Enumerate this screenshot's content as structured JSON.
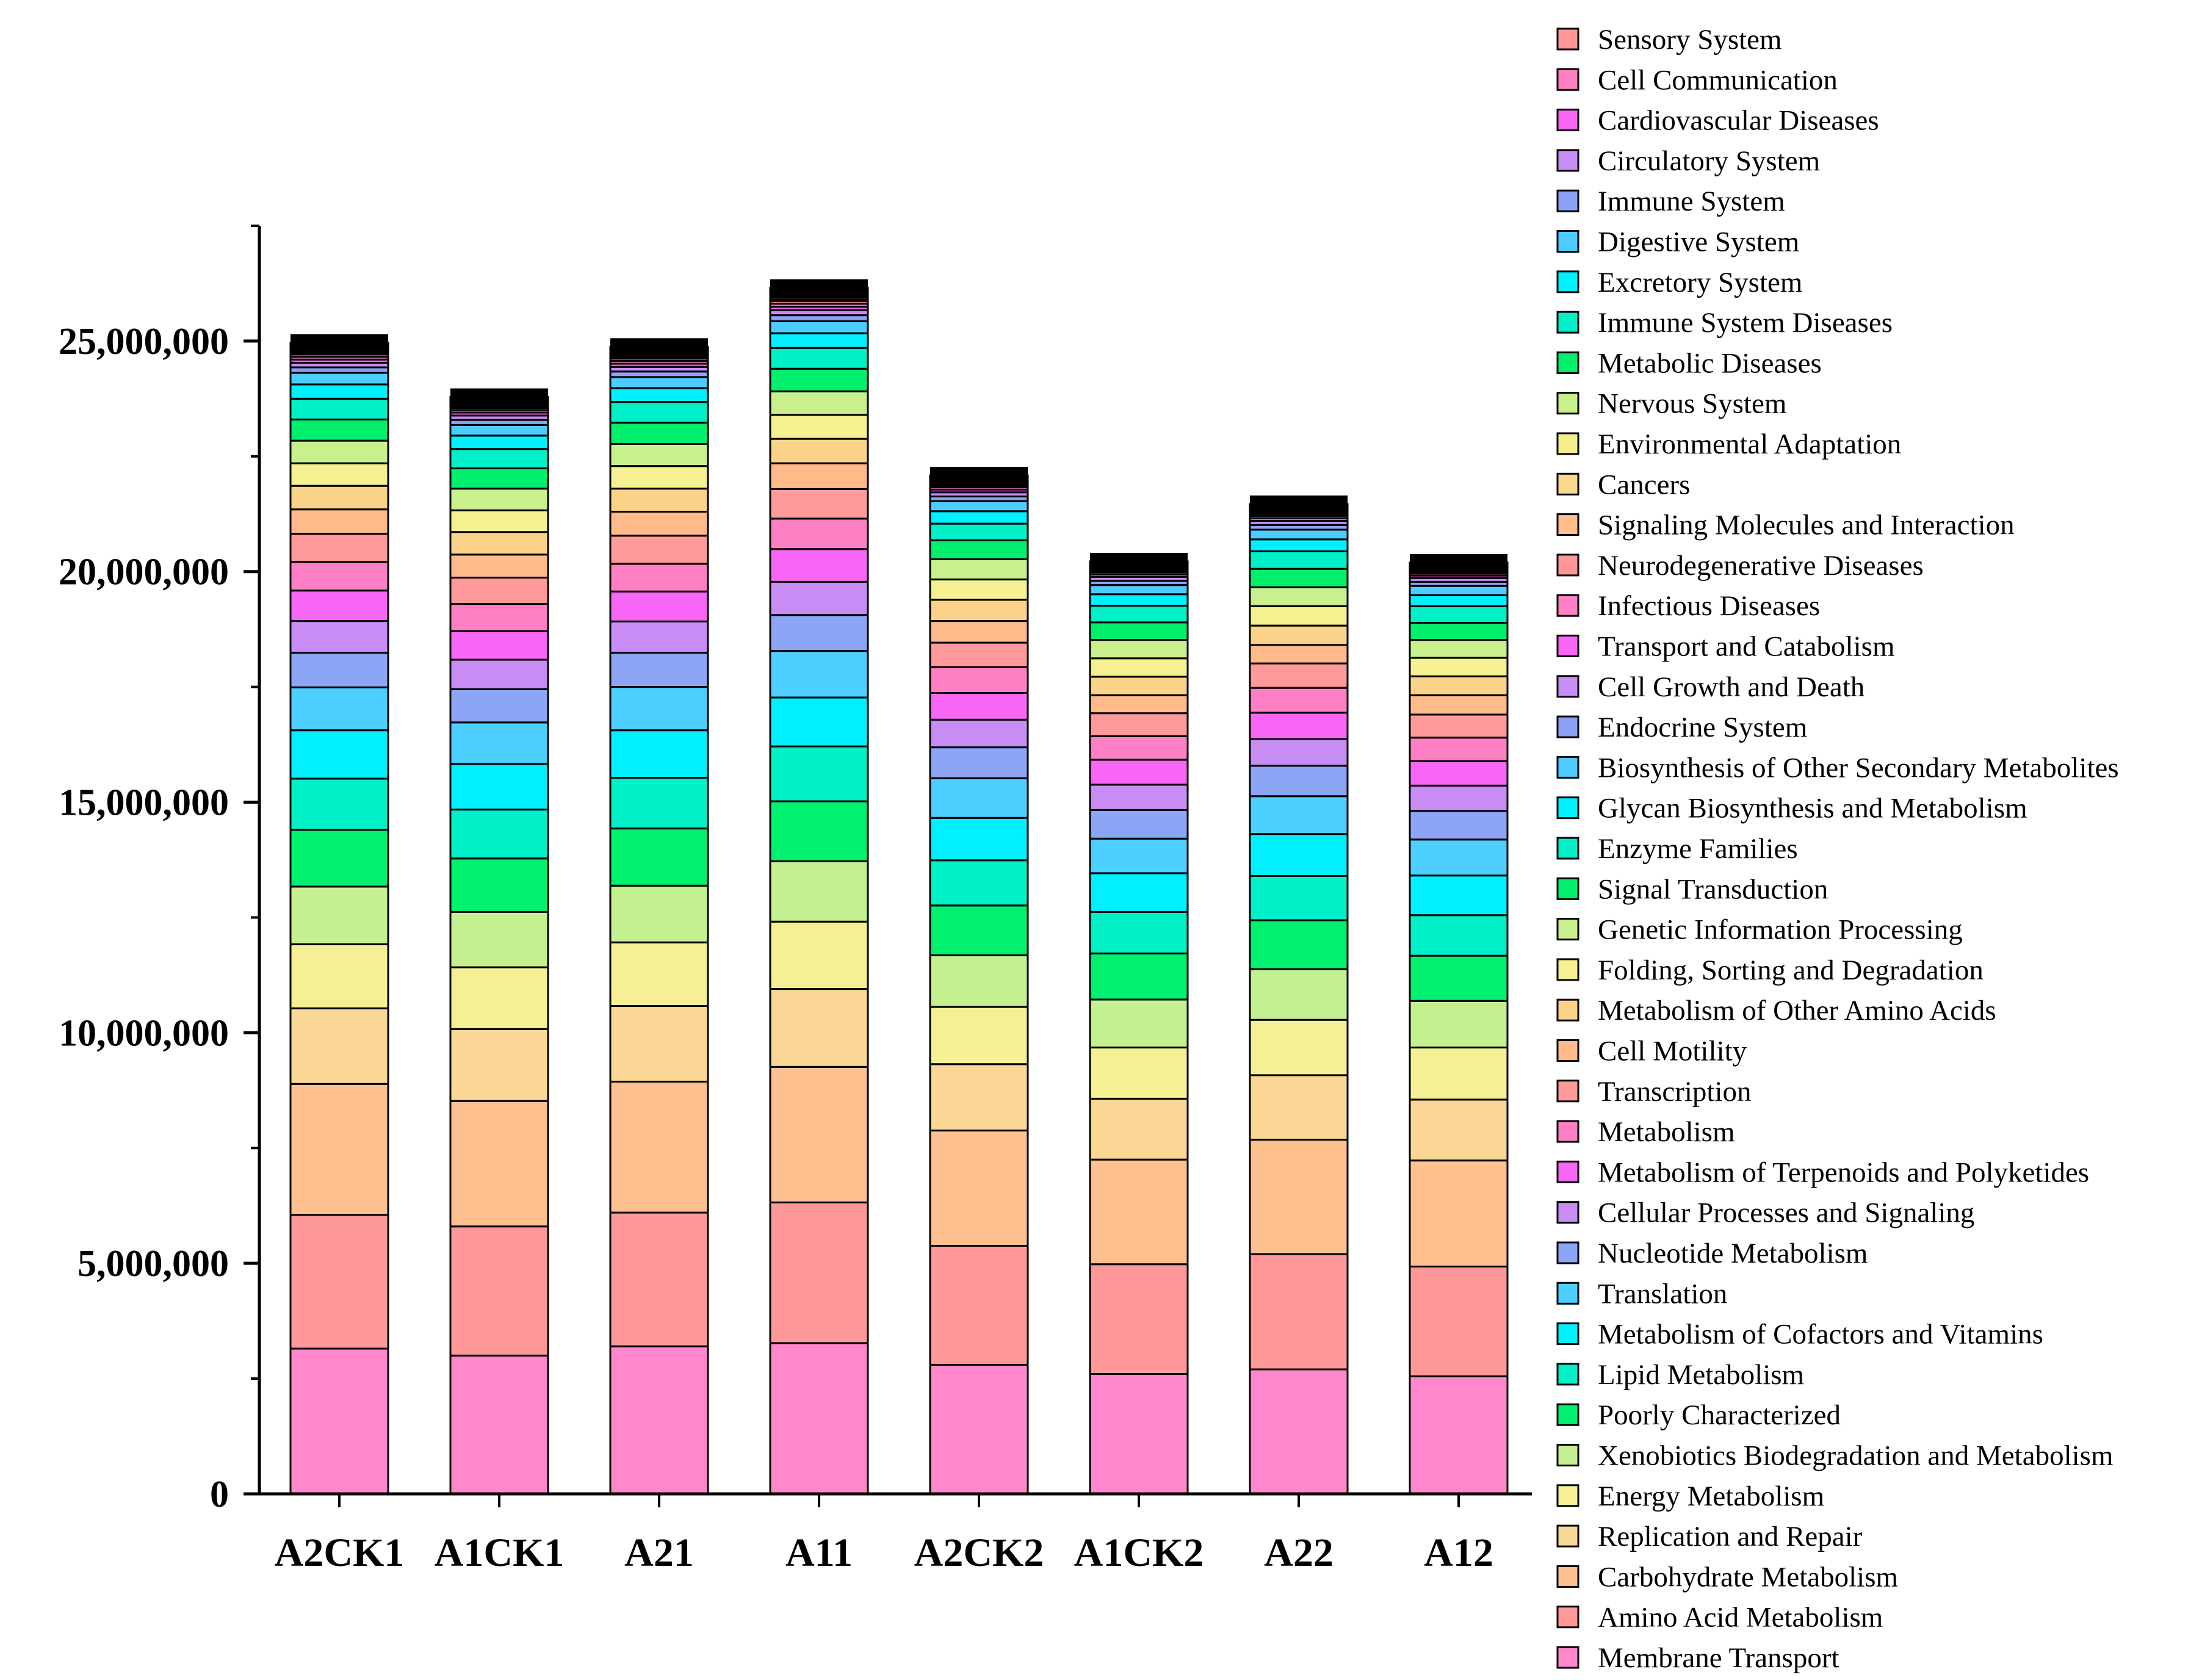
{
  "chart_data": {
    "type": "stacked-bar",
    "title": "",
    "xlabel": "",
    "ylabel": "",
    "ylim": [
      0,
      27500000
    ],
    "yticks": [
      0,
      5000000,
      10000000,
      15000000,
      20000000,
      25000000
    ],
    "ytick_labels": [
      "0",
      "5,000,000",
      "10,000,000",
      "15,000,000",
      "20,000,000",
      "25,000,000"
    ],
    "categories": [
      "A2CK1",
      "A1CK1",
      "A21",
      "A11",
      "A2CK2",
      "A1CK2",
      "A22",
      "A12"
    ],
    "legend_position": "right",
    "series": [
      {
        "name": "Membrane Transport",
        "color": "#FF88CC",
        "values": [
          3150000,
          3000000,
          3200000,
          3270000,
          2800000,
          2600000,
          2700000,
          2550000
        ]
      },
      {
        "name": "Amino Acid Metabolism",
        "color": "#FF9999",
        "values": [
          2900000,
          2800000,
          2900000,
          3050000,
          2580000,
          2380000,
          2500000,
          2380000
        ]
      },
      {
        "name": "Carbohydrate Metabolism",
        "color": "#FFC090",
        "values": [
          2840000,
          2720000,
          2840000,
          2940000,
          2500000,
          2270000,
          2480000,
          2300000
        ]
      },
      {
        "name": "Replication and Repair",
        "color": "#FAD794",
        "values": [
          1640000,
          1560000,
          1640000,
          1690000,
          1440000,
          1320000,
          1400000,
          1320000
        ]
      },
      {
        "name": "Energy Metabolism",
        "color": "#F5F094",
        "values": [
          1390000,
          1340000,
          1380000,
          1460000,
          1240000,
          1110000,
          1200000,
          1130000
        ]
      },
      {
        "name": "Xenobiotics Biodegradation and Metabolism",
        "color": "#C5F090",
        "values": [
          1250000,
          1200000,
          1230000,
          1310000,
          1120000,
          1040000,
          1100000,
          1010000
        ]
      },
      {
        "name": "Poorly Characterized",
        "color": "#00F070",
        "values": [
          1230000,
          1160000,
          1240000,
          1300000,
          1080000,
          1000000,
          1060000,
          980000
        ]
      },
      {
        "name": "Lipid Metabolism",
        "color": "#00F0C8",
        "values": [
          1110000,
          1060000,
          1100000,
          1190000,
          980000,
          900000,
          960000,
          880000
        ]
      },
      {
        "name": "Metabolism of Cofactors and Vitamins",
        "color": "#00F0FF",
        "values": [
          1050000,
          990000,
          1030000,
          1060000,
          920000,
          840000,
          910000,
          860000
        ]
      },
      {
        "name": "Translation",
        "color": "#4DD0FF",
        "values": [
          930000,
          900000,
          940000,
          1010000,
          860000,
          750000,
          820000,
          780000
        ]
      },
      {
        "name": "Nucleotide Metabolism",
        "color": "#8CA6F5",
        "values": [
          750000,
          720000,
          740000,
          780000,
          670000,
          620000,
          660000,
          620000
        ]
      },
      {
        "name": "Cellular Processes and Signaling",
        "color": "#C88CF5",
        "values": [
          690000,
          640000,
          680000,
          720000,
          600000,
          550000,
          580000,
          550000
        ]
      },
      {
        "name": "Metabolism of Terpenoids and Polyketides",
        "color": "#F766F5",
        "values": [
          660000,
          620000,
          650000,
          710000,
          580000,
          540000,
          570000,
          530000
        ]
      },
      {
        "name": "Metabolism",
        "color": "#FF7FC4",
        "values": [
          620000,
          590000,
          600000,
          660000,
          560000,
          510000,
          540000,
          510000
        ]
      },
      {
        "name": "Transcription",
        "color": "#FF9A9A",
        "values": [
          610000,
          570000,
          610000,
          640000,
          530000,
          500000,
          530000,
          500000
        ]
      },
      {
        "name": "Cell Motility",
        "color": "#FFBA8A",
        "values": [
          530000,
          500000,
          520000,
          560000,
          470000,
          390000,
          400000,
          420000
        ]
      },
      {
        "name": "Metabolism of Other Amino Acids",
        "color": "#FAD28A",
        "values": [
          510000,
          490000,
          500000,
          530000,
          460000,
          400000,
          420000,
          410000
        ]
      },
      {
        "name": "Folding, Sorting and Degradation",
        "color": "#F5F090",
        "values": [
          490000,
          470000,
          490000,
          520000,
          440000,
          400000,
          420000,
          400000
        ]
      },
      {
        "name": "Genetic Information Processing",
        "color": "#C8F08C",
        "values": [
          490000,
          470000,
          480000,
          510000,
          440000,
          400000,
          410000,
          390000
        ]
      },
      {
        "name": "Signal Transduction",
        "color": "#00F06E",
        "values": [
          460000,
          440000,
          460000,
          490000,
          410000,
          380000,
          400000,
          370000
        ]
      },
      {
        "name": "Enzyme Families",
        "color": "#00F0C8",
        "values": [
          450000,
          420000,
          450000,
          450000,
          360000,
          360000,
          380000,
          360000
        ]
      },
      {
        "name": "Glycan Biosynthesis and Metabolism",
        "color": "#00F0FF",
        "values": [
          310000,
          290000,
          300000,
          320000,
          270000,
          250000,
          260000,
          240000
        ]
      },
      {
        "name": "Biosynthesis of Other Secondary Metabolites",
        "color": "#4DCCFF",
        "values": [
          250000,
          230000,
          240000,
          260000,
          220000,
          200000,
          210000,
          200000
        ]
      },
      {
        "name": "Endocrine System",
        "color": "#8CA0F5",
        "values": [
          120000,
          110000,
          120000,
          130000,
          100000,
          90000,
          100000,
          90000
        ]
      },
      {
        "name": "Cell Growth and Death",
        "color": "#C88CF5",
        "values": [
          100000,
          95000,
          100000,
          110000,
          90000,
          85000,
          90000,
          80000
        ]
      },
      {
        "name": "Transport and Catabolism",
        "color": "#F766F5",
        "values": [
          70000,
          65000,
          70000,
          75000,
          60000,
          55000,
          60000,
          55000
        ]
      },
      {
        "name": "Infectious Diseases",
        "color": "#FF80C4",
        "values": [
          60000,
          55000,
          60000,
          65000,
          50000,
          45000,
          50000,
          45000
        ]
      },
      {
        "name": "Neurodegenerative Diseases",
        "color": "#FF9696",
        "values": [
          50000,
          45000,
          50000,
          55000,
          40000,
          38000,
          40000,
          38000
        ]
      },
      {
        "name": "Signaling Molecules and Interaction",
        "color": "#FFBE8C",
        "values": [
          40000,
          38000,
          40000,
          45000,
          35000,
          32000,
          35000,
          32000
        ]
      },
      {
        "name": "Cancers",
        "color": "#FAD88C",
        "values": [
          40000,
          38000,
          40000,
          45000,
          35000,
          32000,
          35000,
          32000
        ]
      },
      {
        "name": "Environmental Adaptation",
        "color": "#F5F08C",
        "values": [
          30000,
          28000,
          30000,
          35000,
          25000,
          23000,
          25000,
          23000
        ]
      },
      {
        "name": "Nervous System",
        "color": "#C8F08C",
        "values": [
          30000,
          28000,
          30000,
          35000,
          25000,
          23000,
          25000,
          23000
        ]
      },
      {
        "name": "Metabolic Diseases",
        "color": "#00F06E",
        "values": [
          25000,
          23000,
          25000,
          28000,
          20000,
          19000,
          20000,
          19000
        ]
      },
      {
        "name": "Immune System Diseases",
        "color": "#00F0C8",
        "values": [
          20000,
          19000,
          20000,
          22000,
          18000,
          16000,
          17000,
          16000
        ]
      },
      {
        "name": "Excretory System",
        "color": "#00F0FF",
        "values": [
          15000,
          14000,
          15000,
          17000,
          13000,
          12000,
          13000,
          12000
        ]
      },
      {
        "name": "Digestive System",
        "color": "#4DCCFF",
        "values": [
          15000,
          14000,
          15000,
          17000,
          13000,
          12000,
          13000,
          12000
        ]
      },
      {
        "name": "Immune System",
        "color": "#8CA0F5",
        "values": [
          12000,
          11000,
          12000,
          14000,
          10000,
          9000,
          10000,
          9000
        ]
      },
      {
        "name": "Circulatory System",
        "color": "#C88CF5",
        "values": [
          10000,
          9000,
          10000,
          11000,
          8000,
          7000,
          8000,
          7000
        ]
      },
      {
        "name": "Cardiovascular Diseases",
        "color": "#F766F5",
        "values": [
          8000,
          7000,
          8000,
          9000,
          6000,
          6000,
          6000,
          6000
        ]
      },
      {
        "name": "Cell Communication",
        "color": "#FF80C4",
        "values": [
          6000,
          5000,
          6000,
          7000,
          5000,
          4000,
          5000,
          4000
        ]
      },
      {
        "name": "Sensory System",
        "color": "#FF9696",
        "values": [
          5000,
          4000,
          5000,
          6000,
          4000,
          3000,
          4000,
          3000
        ]
      }
    ]
  }
}
